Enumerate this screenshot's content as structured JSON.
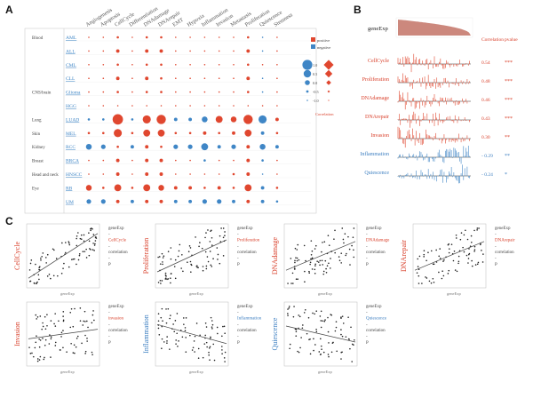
{
  "panels": {
    "a": "A",
    "b": "B",
    "c": "C"
  },
  "colors": {
    "positive": "#e0472f",
    "negative": "#3f86c6",
    "text_red": "#d9402b",
    "text_blue": "#3d7fc1",
    "gene_fill": "#c77b6f"
  },
  "panel_a": {
    "columns": [
      "Angiogenesis",
      "Apoptosis",
      "CellCycle",
      "Differentiation",
      "DNAdamage",
      "DNArepair",
      "EMT",
      "Hypoxia",
      "Inflammation",
      "Invasion",
      "Metastasis",
      "Proliferation",
      "Quiescence",
      "Stemness"
    ],
    "groups": [
      "Blood",
      "",
      "",
      "",
      "CNS/brain",
      "",
      "Lung",
      "Skin",
      "Kidney",
      "Breast",
      "Head and neck",
      "Eye",
      ""
    ],
    "rows": [
      "AML",
      "ALL",
      "CML",
      "CLL",
      "Glioma",
      "HGG",
      "LUAD",
      "MEL",
      "RCC",
      "BRCA",
      "HNSCC",
      "RB",
      "UM"
    ],
    "legend": {
      "positive": "positive",
      "negative": "negative",
      "sizes": [
        "1.0",
        "0.5",
        "0.0",
        "-0.5",
        "-1.0"
      ],
      "title": "Correlation"
    },
    "cells": [
      [
        0.1,
        0.1,
        0.2,
        0.1,
        0.2,
        0.2,
        0.1,
        0.1,
        0.1,
        0.1,
        0.1,
        0.2,
        -0.1,
        0.1
      ],
      [
        0.1,
        0.1,
        0.3,
        0.1,
        0.3,
        0.3,
        0.1,
        0.1,
        0.1,
        0.1,
        0.1,
        0.3,
        -0.1,
        0.1
      ],
      [
        0.1,
        0,
        0.2,
        0,
        0.2,
        0.2,
        0.1,
        0,
        0,
        0.1,
        0.1,
        0.2,
        0,
        0.1
      ],
      [
        0.1,
        0.1,
        0.3,
        0.1,
        0.3,
        0.2,
        0.1,
        0.1,
        0.1,
        0.1,
        0.1,
        0.3,
        -0.1,
        0.1
      ],
      [
        0.1,
        0.1,
        0.2,
        0.1,
        0.2,
        0.2,
        0.1,
        0.1,
        0.1,
        0.1,
        0.1,
        0.2,
        -0.1,
        0.1
      ],
      [
        0.1,
        0.1,
        0.1,
        0.1,
        0.1,
        0.1,
        0.1,
        0,
        0,
        0.1,
        0.1,
        0.1,
        0,
        0.1
      ],
      [
        -0.2,
        -0.2,
        0.9,
        -0.2,
        0.7,
        0.8,
        -0.3,
        -0.3,
        -0.5,
        0.6,
        0.5,
        0.8,
        -0.7,
        0.3
      ],
      [
        0.2,
        0.2,
        0.7,
        0.2,
        0.6,
        0.6,
        0.2,
        0.2,
        0.3,
        0.2,
        0.3,
        0.6,
        -0.3,
        0.2
      ],
      [
        -0.5,
        -0.4,
        0.2,
        -0.3,
        0.3,
        0.2,
        -0.4,
        -0.4,
        -0.6,
        -0.3,
        -0.4,
        0.3,
        -0.5,
        -0.3
      ],
      [
        0.1,
        0.1,
        0.3,
        0.1,
        0.3,
        0.3,
        0.1,
        0.1,
        -0.2,
        0.1,
        0.1,
        0.3,
        -0.2,
        0.1
      ],
      [
        0.1,
        0.1,
        0.3,
        0.1,
        0.3,
        0.3,
        0.1,
        0.1,
        0.1,
        0.1,
        0.2,
        0.3,
        -0.1,
        0.1
      ],
      [
        0.5,
        0.2,
        0.6,
        0.2,
        0.6,
        0.5,
        0.3,
        0.3,
        0.2,
        0.3,
        0.2,
        0.6,
        -0.3,
        0.2
      ],
      [
        -0.4,
        -0.4,
        0.3,
        -0.3,
        0.3,
        0.3,
        -0.3,
        -0.3,
        -0.4,
        -0.4,
        -0.3,
        0.3,
        -0.3,
        -0.2
      ]
    ]
  },
  "panel_b": {
    "title": "geneExp",
    "col_corr": "Correlation",
    "col_p": "pvalue",
    "tracks": [
      {
        "name": "CellCycle",
        "corr": "0.54",
        "p": "***",
        "sign": "pos"
      },
      {
        "name": "Proliferation",
        "corr": "0.48",
        "p": "***",
        "sign": "pos"
      },
      {
        "name": "DNAdamage",
        "corr": "0.46",
        "p": "***",
        "sign": "pos"
      },
      {
        "name": "DNArepair",
        "corr": "0.43",
        "p": "***",
        "sign": "pos"
      },
      {
        "name": "Invasion",
        "corr": "0.30",
        "p": "**",
        "sign": "pos"
      },
      {
        "name": "Inflammation",
        "corr": "- 0.29",
        "p": "**",
        "sign": "neg"
      },
      {
        "name": "Quiescence",
        "corr": "- 0.24",
        "p": "*",
        "sign": "neg"
      }
    ]
  },
  "panel_c": {
    "xlabel": "geneExp",
    "plots": [
      {
        "name": "CellCycle",
        "lines": [
          "geneExp",
          "-",
          "CellCycle",
          "-",
          "correlation",
          "-",
          "P"
        ],
        "sign": "pos",
        "slope": 0.7
      },
      {
        "name": "Proliferation",
        "lines": [
          "geneExp",
          "-",
          "Proliferation",
          "-",
          "correlation",
          "-",
          "P"
        ],
        "sign": "pos",
        "slope": 0.5
      },
      {
        "name": "DNAdamage",
        "lines": [
          "geneExp",
          "-",
          "DNAdamage",
          "-",
          "correlation",
          "-",
          "P"
        ],
        "sign": "pos",
        "slope": 0.45
      },
      {
        "name": "DNArepair",
        "lines": [
          "geneExp",
          "-",
          "DNArepair",
          "-",
          "correlation",
          "-",
          "P"
        ],
        "sign": "pos",
        "slope": 0.45
      },
      {
        "name": "Invasion",
        "lines": [
          "geneExp",
          "-",
          "invasion",
          "-",
          "correlation",
          "-",
          "P"
        ],
        "sign": "pos",
        "slope": 0.15
      },
      {
        "name": "Inflammation",
        "lines": [
          "geneExp",
          "-",
          "Inflammation",
          "-",
          "correlation",
          "-",
          "P"
        ],
        "sign": "neg",
        "slope": -0.3
      },
      {
        "name": "Quiescence",
        "lines": [
          "geneExp",
          "-",
          "Quiescence",
          "-",
          "correlation",
          "-",
          "P"
        ],
        "sign": "neg",
        "slope": -0.25
      }
    ]
  }
}
